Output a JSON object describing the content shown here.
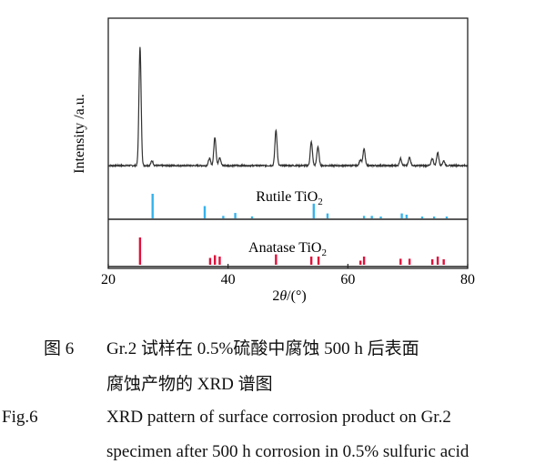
{
  "chart_data": {
    "type": "line",
    "xlabel_prefix": "2",
    "xlabel_theta": "θ",
    "xlabel_unit": "/(°)",
    "ylabel": "Intensity /a.u.",
    "xlim": [
      20,
      80
    ],
    "xticks": [
      20,
      40,
      60,
      80
    ],
    "xticks_labels": [
      "20",
      "40",
      "60",
      "80"
    ],
    "pattern": {
      "baseline": 0.06,
      "peaks": [
        {
          "x": 25.3,
          "y": 1.0
        },
        {
          "x": 27.3,
          "y": 0.04
        },
        {
          "x": 36.9,
          "y": 0.06
        },
        {
          "x": 37.8,
          "y": 0.24
        },
        {
          "x": 38.6,
          "y": 0.07
        },
        {
          "x": 48.0,
          "y": 0.3
        },
        {
          "x": 53.9,
          "y": 0.2
        },
        {
          "x": 55.0,
          "y": 0.16
        },
        {
          "x": 62.1,
          "y": 0.05
        },
        {
          "x": 62.7,
          "y": 0.14
        },
        {
          "x": 68.8,
          "y": 0.06
        },
        {
          "x": 70.3,
          "y": 0.07
        },
        {
          "x": 74.1,
          "y": 0.06
        },
        {
          "x": 75.0,
          "y": 0.11
        },
        {
          "x": 76.0,
          "y": 0.04
        }
      ]
    },
    "reference_series": [
      {
        "name": "Rutile TiO",
        "subscript": "2",
        "color": "#35b3ec",
        "sticks": [
          {
            "x": 27.4,
            "y": 1.0
          },
          {
            "x": 36.1,
            "y": 0.5
          },
          {
            "x": 39.2,
            "y": 0.1
          },
          {
            "x": 41.2,
            "y": 0.22
          },
          {
            "x": 44.0,
            "y": 0.08
          },
          {
            "x": 54.3,
            "y": 0.6
          },
          {
            "x": 56.6,
            "y": 0.2
          },
          {
            "x": 62.7,
            "y": 0.1
          },
          {
            "x": 64.0,
            "y": 0.1
          },
          {
            "x": 65.5,
            "y": 0.05
          },
          {
            "x": 69.0,
            "y": 0.2
          },
          {
            "x": 69.8,
            "y": 0.15
          },
          {
            "x": 72.4,
            "y": 0.05
          },
          {
            "x": 74.4,
            "y": 0.05
          },
          {
            "x": 76.5,
            "y": 0.05
          }
        ]
      },
      {
        "name": "Anatase TiO",
        "subscript": "2",
        "color": "#e0103a",
        "sticks": [
          {
            "x": 25.3,
            "y": 1.0
          },
          {
            "x": 37.0,
            "y": 0.25
          },
          {
            "x": 37.8,
            "y": 0.35
          },
          {
            "x": 38.6,
            "y": 0.3
          },
          {
            "x": 48.0,
            "y": 0.38
          },
          {
            "x": 53.9,
            "y": 0.3
          },
          {
            "x": 55.1,
            "y": 0.3
          },
          {
            "x": 62.1,
            "y": 0.15
          },
          {
            "x": 62.7,
            "y": 0.3
          },
          {
            "x": 68.8,
            "y": 0.22
          },
          {
            "x": 70.3,
            "y": 0.22
          },
          {
            "x": 74.1,
            "y": 0.2
          },
          {
            "x": 75.0,
            "y": 0.3
          },
          {
            "x": 76.0,
            "y": 0.2
          }
        ]
      }
    ]
  },
  "caption": {
    "cn_label": "图 6",
    "cn_line1": "Gr.2 试样在 0.5%硫酸中腐蚀 500 h 后表面",
    "cn_line2": "腐蚀产物的 XRD 谱图",
    "en_label": "Fig.6",
    "en_line1": "XRD pattern of surface corrosion product on Gr.2",
    "en_line2": "specimen after 500 h corrosion in 0.5% sulfuric acid"
  }
}
